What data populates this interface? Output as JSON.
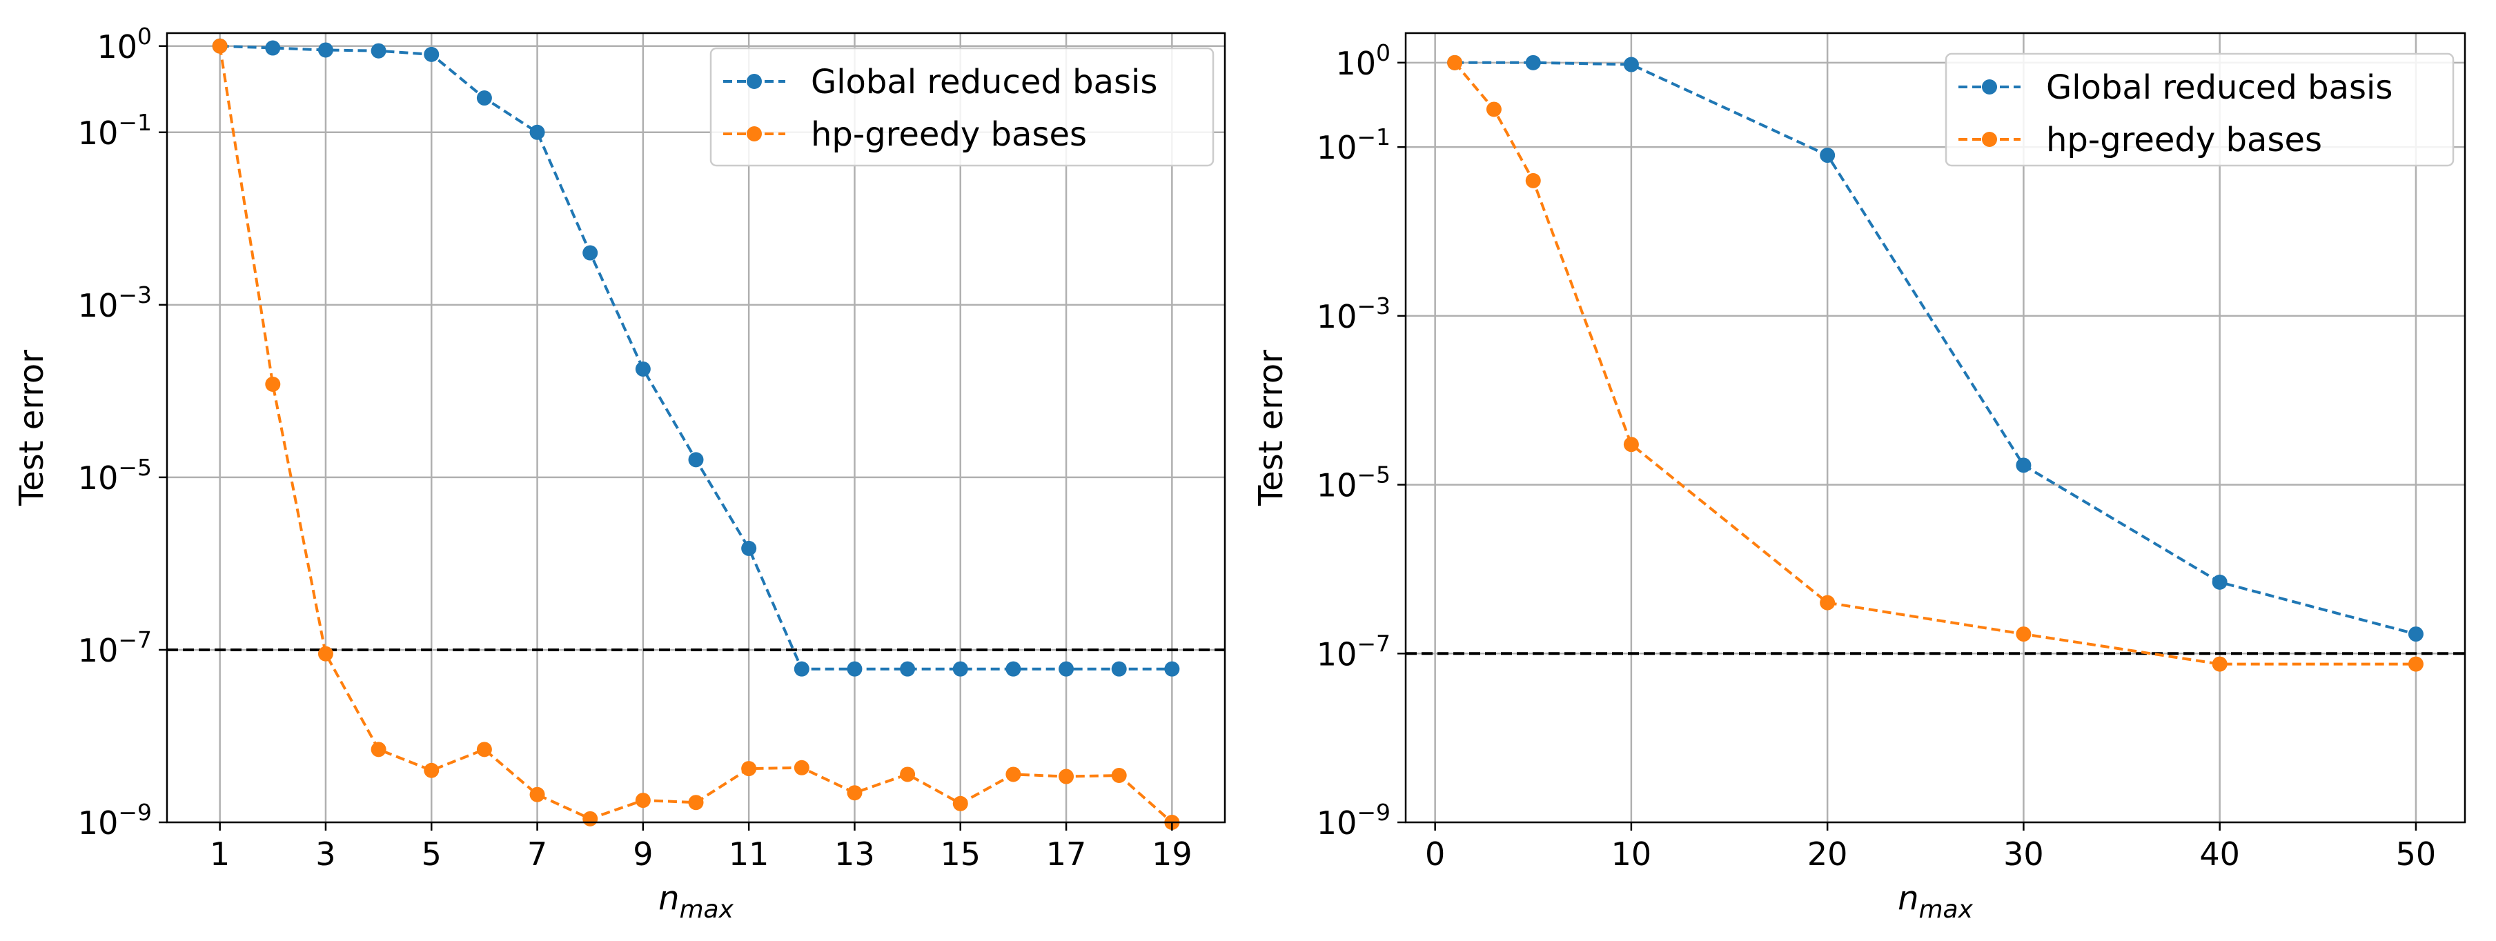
{
  "chart_data": [
    {
      "type": "line",
      "title": "",
      "xlabel": "n_max",
      "ylabel": "Test error",
      "yscale": "log",
      "ylim_exponent": [
        -9,
        0.15
      ],
      "xlim": [
        0,
        20
      ],
      "grid": true,
      "legend_position": "top-right",
      "x_ticks": [
        1,
        3,
        5,
        7,
        9,
        11,
        13,
        15,
        17,
        19
      ],
      "y_tick_exponents": [
        0,
        -1,
        -3,
        -5,
        -7,
        -9
      ],
      "reference_line": {
        "y": 1e-07,
        "style": "dashed",
        "color": "#000000"
      },
      "x": [
        1,
        2,
        3,
        4,
        5,
        6,
        7,
        8,
        9,
        10,
        11,
        12,
        13,
        14,
        15,
        16,
        17,
        18,
        19
      ],
      "series": [
        {
          "name": "Global reduced basis",
          "color": "#1f77b4",
          "values": [
            1.0,
            0.95,
            0.9,
            0.88,
            0.8,
            0.25,
            0.1,
            0.004,
            0.00018,
            1.6e-05,
            1.5e-06,
            6e-08,
            6e-08,
            6e-08,
            6e-08,
            6e-08,
            6e-08,
            6e-08,
            6e-08
          ]
        },
        {
          "name": "hp-greedy bases",
          "color": "#ff7f0e",
          "values": [
            1.0,
            0.00012,
            9e-08,
            7e-09,
            4e-09,
            7e-09,
            2.1e-09,
            1.1e-09,
            1.8e-09,
            1.7e-09,
            4.2e-09,
            4.3e-09,
            2.2e-09,
            3.6e-09,
            1.65e-09,
            3.6e-09,
            3.4e-09,
            3.5e-09,
            1e-09
          ]
        }
      ]
    },
    {
      "type": "line",
      "title": "",
      "xlabel": "n_max",
      "ylabel": "Test error",
      "yscale": "log",
      "ylim_exponent": [
        -9,
        0.35
      ],
      "xlim": [
        -1.5,
        52.5
      ],
      "grid": true,
      "legend_position": "top-right",
      "x_ticks": [
        0,
        10,
        20,
        30,
        40,
        50
      ],
      "y_tick_exponents": [
        0,
        -1,
        -3,
        -5,
        -7,
        -9
      ],
      "reference_line": {
        "y": 1e-07,
        "style": "dashed",
        "color": "#000000"
      },
      "series": [
        {
          "name": "Global reduced basis",
          "color": "#1f77b4",
          "x": [
            1,
            5,
            10,
            20,
            30,
            40,
            50
          ],
          "values": [
            1.0,
            1.0,
            0.95,
            0.08,
            1.7e-05,
            7e-07,
            1.7e-07
          ]
        },
        {
          "name": "hp-greedy bases",
          "color": "#ff7f0e",
          "x": [
            1,
            3,
            5,
            10,
            20,
            30,
            40,
            50
          ],
          "values": [
            1.0,
            0.28,
            0.04,
            3e-05,
            4e-07,
            1.7e-07,
            7.5e-08,
            7.5e-08
          ]
        }
      ]
    }
  ]
}
